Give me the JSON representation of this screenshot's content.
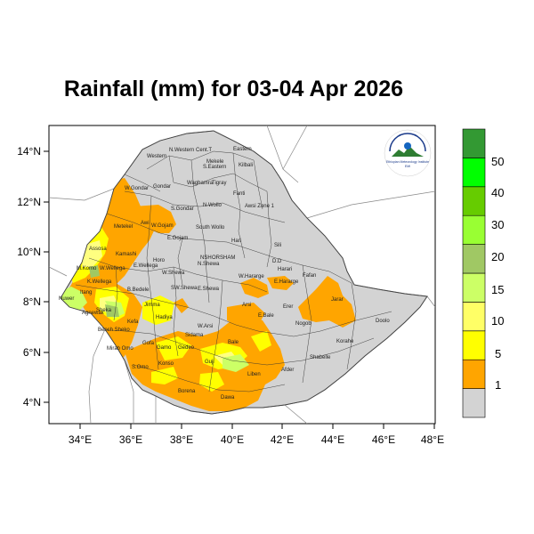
{
  "title": "Rainfall (mm) for 03-04 Apr 2026",
  "logo": {
    "agency": "Ethiopian Meteorology Institute",
    "year": "EMI"
  },
  "map": {
    "lon_range": [
      33,
      48
    ],
    "lat_range": [
      3.3,
      14.8
    ],
    "x_ticks": [
      "34°E",
      "36°E",
      "38°E",
      "40°E",
      "42°E",
      "44°E",
      "46°E",
      "48°E"
    ],
    "y_ticks": [
      "14°N",
      "12°N",
      "10°N",
      "8°N",
      "6°N",
      "4°N"
    ],
    "region_labels": [
      "Western",
      "N.Western",
      "Cent.T",
      "Eastern",
      "Mekele",
      "S.Eastern",
      "Kilbali",
      "W.Gondar",
      "Gondar",
      "Waghamra",
      "Tigray",
      "Fanti",
      "S.Gondar",
      "N.Wollo",
      "Awsi Zone 1",
      "Metekel",
      "Awi",
      "W.Gojam",
      "E.Gojam",
      "South Wollo",
      "Hari",
      "Sili",
      "Assosa",
      "Kamashi",
      "Horo",
      "NSH",
      "OR",
      "SHAM",
      "D.D",
      "Harari",
      "M.Komo",
      "W.Wellega",
      "E.Wellega",
      "W.Shewa",
      "N.Shewa",
      "K.Wellega",
      "B.Bedele",
      "SW.Shewa",
      "E.Shewa",
      "W.Hararge",
      "E.Hararge",
      "Fafan",
      "Itang",
      "Nuwer",
      "Agnewak",
      "Jimma",
      "Arsi",
      "Jarar",
      "Sheka",
      "Kefa",
      "Hadiya",
      "Erer",
      "Doolo",
      "Bench Sheko",
      "W.Arsi",
      "Bale",
      "Nogob",
      "Korahe",
      "Mirab Omo",
      "Gofa",
      "Gamo",
      "Sidama",
      "Gedeo",
      "Shabelle",
      "S.Omo",
      "Konso",
      "Guji",
      "Liben",
      "Afder",
      "Borena",
      "Dawa",
      "E.Bale"
    ]
  },
  "legend": {
    "labels": [
      "1",
      "5",
      "10",
      "15",
      "20",
      "30",
      "40",
      "50"
    ],
    "colors": [
      "#d3d3d3",
      "#ffa500",
      "#ffff00",
      "#ffff66",
      "#ccff66",
      "#a0c864",
      "#99ff33",
      "#66cc00",
      "#00ff00",
      "#339933"
    ]
  }
}
